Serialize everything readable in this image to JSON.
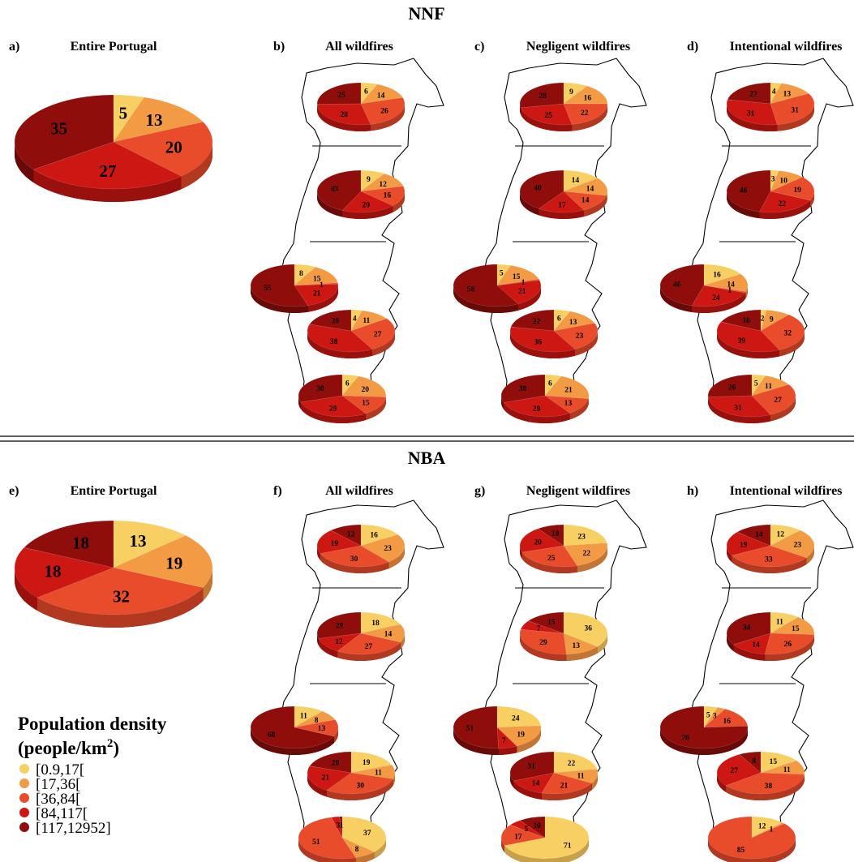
{
  "colors": [
    "#f7cf62",
    "#f39a45",
    "#e84c2a",
    "#cc1712",
    "#8f0d0b"
  ],
  "legend": {
    "title_line1": "Population density",
    "title_line2": "(people/km",
    "title_sup": "2",
    "title_close": ")",
    "items": [
      "[0.9,17[",
      "[17,36[",
      "[36,84[",
      "[84,117[",
      "[117,12952]"
    ]
  },
  "chart_data": [
    {
      "section": "NNF",
      "panels": [
        {
          "letter": "a)",
          "title": "Entire Portugal",
          "type": "pie",
          "regions": [
            [
              5,
              13,
              20,
              27,
              35
            ]
          ]
        },
        {
          "letter": "b)",
          "title": "All wildfires",
          "type": "pie",
          "regions": [
            [
              6,
              14,
              26,
              28,
              25
            ],
            [
              9,
              12,
              16,
              20,
              43
            ],
            [
              8,
              15,
              1,
              21,
              55
            ],
            [
              4,
              11,
              27,
              38,
              20
            ],
            [
              6,
              20,
              15,
              29,
              30
            ]
          ]
        },
        {
          "letter": "c)",
          "title": "Negligent wildfires",
          "type": "pie",
          "regions": [
            [
              9,
              16,
              22,
              25,
              28
            ],
            [
              14,
              14,
              14,
              17,
              40
            ],
            [
              5,
              15,
              1,
              21,
              58
            ],
            [
              6,
              13,
              23,
              36,
              22
            ],
            [
              6,
              21,
              13,
              29,
              30
            ]
          ]
        },
        {
          "letter": "d)",
          "title": "Intentional wildfires",
          "type": "pie",
          "regions": [
            [
              4,
              13,
              31,
              31,
              22
            ],
            [
              3,
              10,
              19,
              22,
              46
            ],
            [
              16,
              14,
              1,
              24,
              46
            ],
            [
              2,
              9,
              32,
              39,
              18
            ],
            [
              5,
              11,
              27,
              31,
              26
            ]
          ]
        }
      ]
    },
    {
      "section": "NBA",
      "panels": [
        {
          "letter": "e)",
          "title": "Entire Portugal",
          "type": "pie",
          "regions": [
            [
              13,
              19,
              32,
              18,
              18
            ]
          ]
        },
        {
          "letter": "f)",
          "title": "All wildfires",
          "type": "pie",
          "regions": [
            [
              16,
              23,
              30,
              19,
              12
            ],
            [
              18,
              14,
              27,
              12,
              29
            ],
            [
              11,
              8,
              13,
              0,
              68
            ],
            [
              19,
              11,
              30,
              21,
              20
            ],
            [
              37,
              8,
              51,
              3,
              1
            ]
          ]
        },
        {
          "letter": "g)",
          "title": "Negligent wildfires",
          "type": "pie",
          "regions": [
            [
              23,
              22,
              25,
              20,
              10
            ],
            [
              36,
              13,
              29,
              7,
              15
            ],
            [
              24,
              19,
              0,
              7,
              51
            ],
            [
              22,
              11,
              21,
              14,
              31
            ],
            [
              71,
              0,
              17,
              5,
              10
            ]
          ]
        },
        {
          "letter": "h)",
          "title": "Intentional wildfires",
          "type": "pie",
          "regions": [
            [
              12,
              23,
              33,
              19,
              14
            ],
            [
              11,
              15,
              26,
              14,
              34
            ],
            [
              5,
              3,
              16,
              0,
              76
            ],
            [
              15,
              11,
              38,
              27,
              8
            ],
            [
              12,
              1,
              85,
              0,
              0
            ]
          ]
        }
      ]
    }
  ]
}
